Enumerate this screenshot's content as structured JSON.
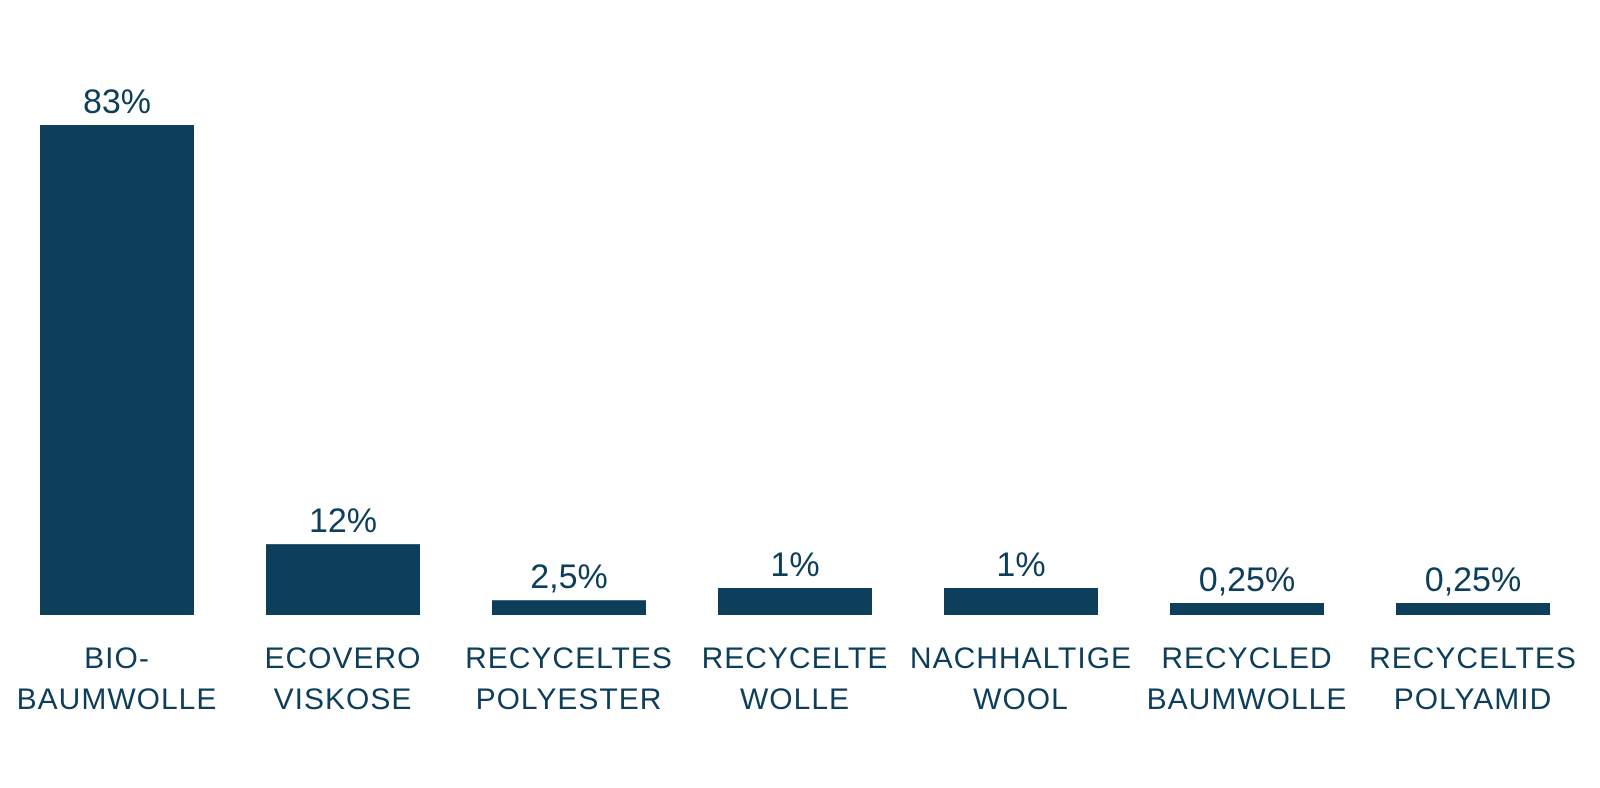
{
  "chart_data": {
    "type": "bar",
    "title": "",
    "xlabel": "",
    "ylabel": "",
    "categories": [
      [
        "BIO-",
        "BAUMWOLLE"
      ],
      [
        "ECOVERO",
        "VISKOSE"
      ],
      [
        "RECYCELTES",
        "POLYESTER"
      ],
      [
        "RECYCELTE",
        "WOLLE"
      ],
      [
        "NACHHALTIGE",
        "WOOL"
      ],
      [
        "RECYCLED",
        "BAUMWOLLE"
      ],
      [
        "RECYCELTES",
        "POLYAMID"
      ]
    ],
    "values": [
      83,
      12,
      2.5,
      1,
      1,
      0.25,
      0.25
    ],
    "value_labels": [
      "83%",
      "12%",
      "2,5%",
      "1%",
      "1%",
      "0,25%",
      "0,25%"
    ],
    "grid": false,
    "legend": "none",
    "colors": {
      "bar": "#0d3f5a",
      "text": "#0d3f5a",
      "background": "#ffffff"
    }
  }
}
